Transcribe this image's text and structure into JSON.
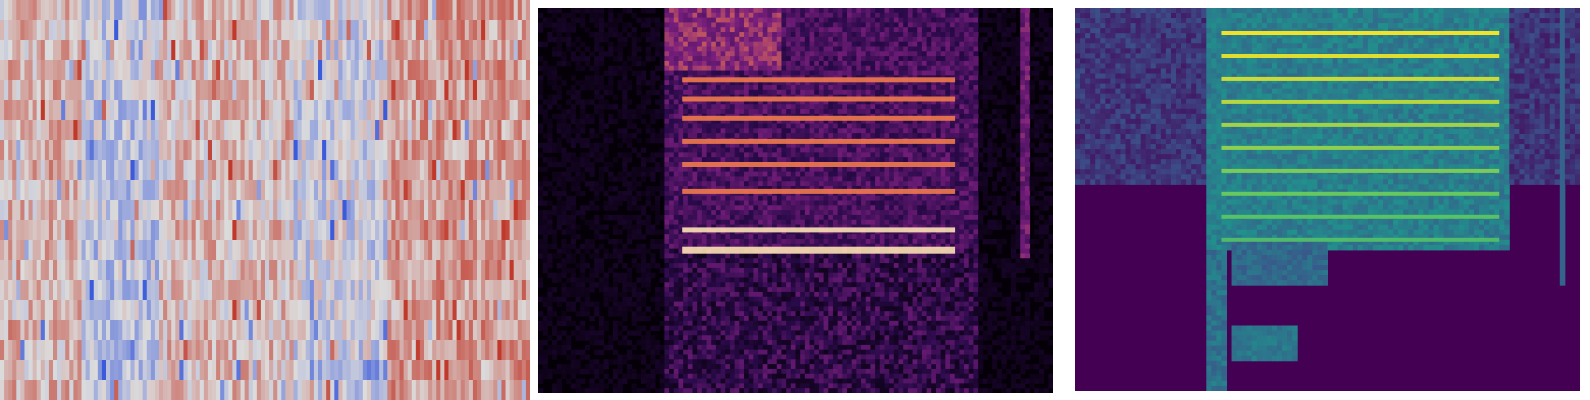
{
  "figure": {
    "panels": [
      {
        "id": "mfcc-heatmap",
        "kind": "heatmap",
        "colormap": "coolwarm",
        "colors": {
          "cool": "#3b5bdb",
          "neutral": "#dcdcdc",
          "warm": "#c0392b"
        },
        "rows": 20
      },
      {
        "id": "spectrogram-magma",
        "kind": "spectrogram",
        "colormap": "magma",
        "colors": {
          "background": "#050008",
          "low": "#2a0a4a",
          "mid": "#7a1f7e",
          "high": "#f07a4c",
          "peak": "#fde2b5"
        }
      },
      {
        "id": "spectrogram-viridis",
        "kind": "spectrogram",
        "colormap": "viridis",
        "colors": {
          "background": "#440154",
          "low": "#3b528b",
          "mid": "#21918c",
          "high": "#5ec962",
          "peak": "#fde725"
        }
      }
    ]
  }
}
